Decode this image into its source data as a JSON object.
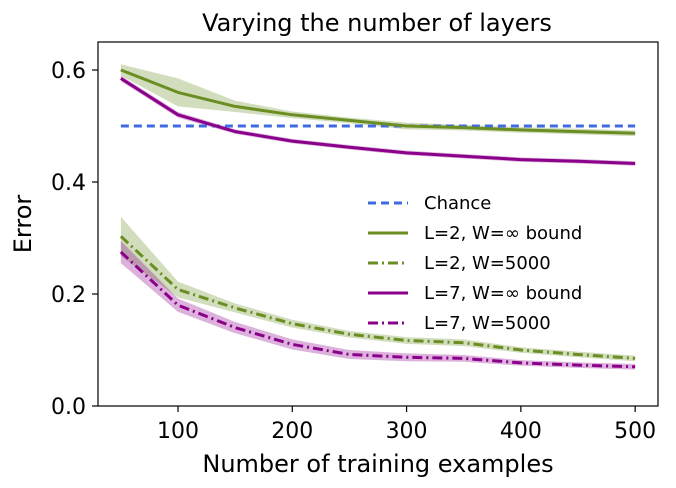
{
  "chart_data": {
    "type": "line",
    "title": "Varying the number of layers",
    "xlabel": "Number of training examples",
    "ylabel": "Error",
    "xlim": [
      30,
      520
    ],
    "ylim": [
      0.0,
      0.65
    ],
    "xticks": [
      100,
      200,
      300,
      400,
      500
    ],
    "yticks": [
      0.0,
      0.2,
      0.4,
      0.6
    ],
    "xtick_labels": [
      "100",
      "200",
      "300",
      "400",
      "500"
    ],
    "ytick_labels": [
      "0.0",
      "0.2",
      "0.4",
      "0.6"
    ],
    "grid": false,
    "legend_position": "right",
    "x": [
      50,
      100,
      150,
      200,
      250,
      300,
      350,
      400,
      450,
      500
    ],
    "series": [
      {
        "name": "Chance",
        "style": "dashed",
        "color": "#4169e1",
        "values": [
          0.5,
          0.5,
          0.5,
          0.5,
          0.5,
          0.5,
          0.5,
          0.5,
          0.5,
          0.5
        ]
      },
      {
        "name": "L=2, W=∞ bound",
        "style": "solid",
        "color": "#6b8e23",
        "values": [
          0.6,
          0.56,
          0.535,
          0.52,
          0.51,
          0.5,
          0.497,
          0.493,
          0.49,
          0.487
        ],
        "band": [
          0.01,
          0.025,
          0.01,
          0.006,
          0.005,
          0.006,
          0.005,
          0.005,
          0.005,
          0.005
        ]
      },
      {
        "name": "L=2, W=5000",
        "style": "dashdot",
        "color": "#6b8e23",
        "values": [
          0.303,
          0.208,
          0.175,
          0.147,
          0.128,
          0.117,
          0.113,
          0.1,
          0.092,
          0.085
        ],
        "band": [
          0.035,
          0.014,
          0.008,
          0.007,
          0.006,
          0.006,
          0.006,
          0.005,
          0.005,
          0.005
        ]
      },
      {
        "name": "L=7, W=∞ bound",
        "style": "solid",
        "color": "#8b008b",
        "values": [
          0.585,
          0.52,
          0.49,
          0.473,
          0.462,
          0.452,
          0.446,
          0.44,
          0.437,
          0.433
        ],
        "band": [
          0.005,
          0.005,
          0.004,
          0.004,
          0.004,
          0.004,
          0.004,
          0.004,
          0.004,
          0.004
        ]
      },
      {
        "name": "L=7, W=5000",
        "style": "dashdot",
        "color": "#8b008b",
        "values": [
          0.275,
          0.18,
          0.14,
          0.11,
          0.092,
          0.087,
          0.085,
          0.077,
          0.073,
          0.07
        ],
        "band": [
          0.02,
          0.012,
          0.01,
          0.009,
          0.008,
          0.007,
          0.006,
          0.005,
          0.005,
          0.005
        ]
      }
    ]
  }
}
